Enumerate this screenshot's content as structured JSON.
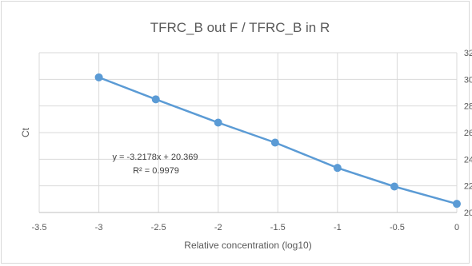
{
  "chart_data": {
    "type": "scatter",
    "title": "TFRC_B out F / TFRC_B in R",
    "xlabel": "Relative concentration (log10)",
    "ylabel": "Ct",
    "xlim": [
      -3.5,
      0
    ],
    "ylim": [
      20,
      32
    ],
    "x_ticks": [
      "-3.5",
      "-3",
      "-2.5",
      "-2",
      "-1.5",
      "-1",
      "-0.5",
      "0"
    ],
    "y_ticks": [
      "20",
      "22",
      "24",
      "26",
      "28",
      "30",
      "32"
    ],
    "grid": true,
    "y_axis_side": "right",
    "series": [
      {
        "x": [
          -3,
          -2.5229,
          -2,
          -1.5229,
          -1,
          -0.5229,
          0
        ],
        "y": [
          30.15,
          28.5,
          26.75,
          25.25,
          23.35,
          21.95,
          20.65
        ],
        "color": "#5b9bd5"
      }
    ],
    "trendline_equation": "y = -3.2178x + 20.369",
    "r_squared": "R² = 0.9979"
  }
}
